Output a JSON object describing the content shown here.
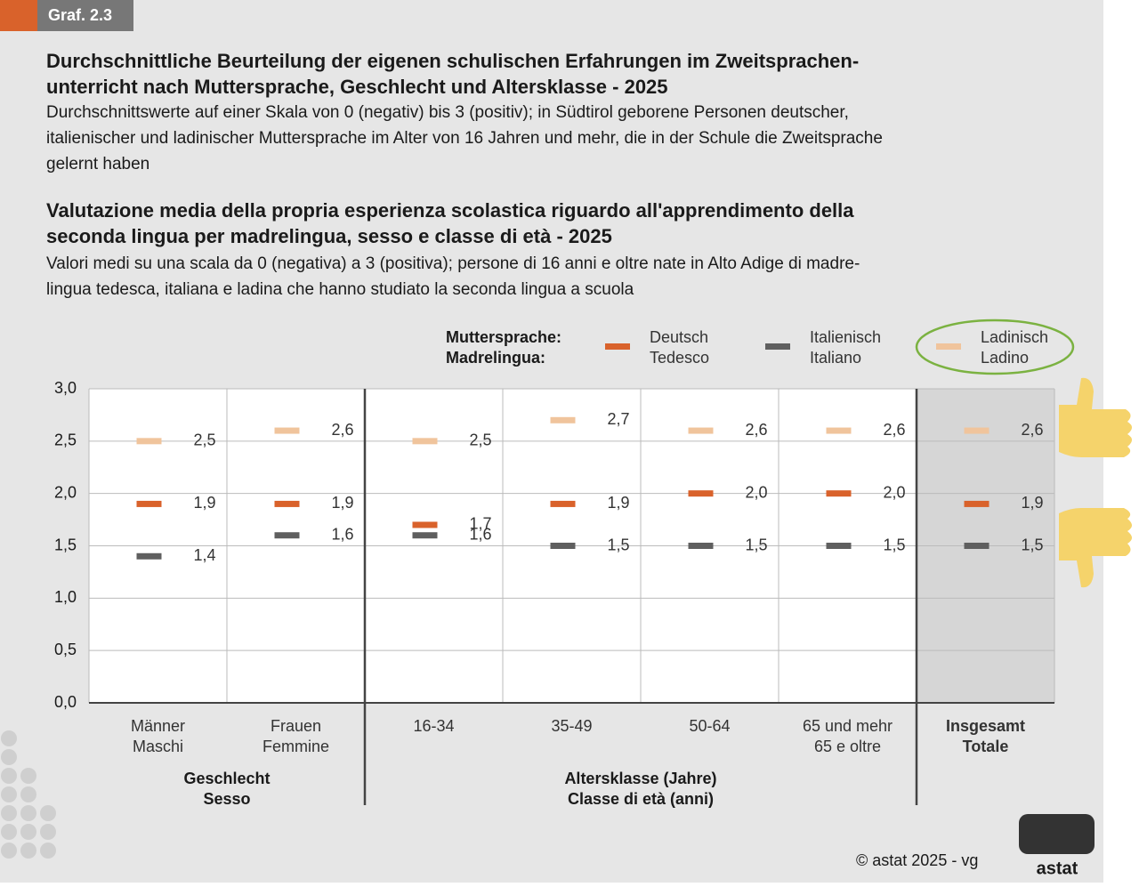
{
  "badge": "Graf. 2.3",
  "chart_data": {
    "type": "dash",
    "title_de": [
      "Durchschnittliche Beurteilung der eigenen schulischen Erfahrungen im Zweitsprachen-",
      "unterricht nach Muttersprache, Geschlecht und Altersklasse - 2025"
    ],
    "subtitle_de": [
      "Durchschnittswerte auf einer Skala von 0 (negativ) bis 3 (positiv); in Südtirol geborene Personen deutscher,",
      "italienischer und ladinischer Muttersprache im Alter von 16 Jahren und mehr, die in der Schule die Zweitsprache",
      "gelernt haben"
    ],
    "title_it": [
      "Valutazione media della propria esperienza scolastica riguardo all'apprendimento della",
      "seconda lingua per madrelingua, sesso e classe di età - 2025"
    ],
    "subtitle_it": [
      "Valori medi su una scala da 0 (negativa) a 3 (positiva); persone di 16 anni e oltre nate in Alto Adige di madre-",
      "lingua tedesca, italiana e ladina che hanno studiato la seconda lingua a scuola"
    ],
    "legend_title": [
      "Muttersprache:",
      "Madrelingua:"
    ],
    "categories": [
      [
        "Männer",
        "Maschi"
      ],
      [
        "Frauen",
        "Femmine"
      ],
      [
        "16-34"
      ],
      [
        "35-49"
      ],
      [
        "50-64"
      ],
      [
        "65 und mehr",
        "65 e oltre"
      ],
      [
        "Insgesamt",
        "Totale"
      ]
    ],
    "groups": [
      [
        "Geschlecht",
        "Sesso"
      ],
      [
        "Altersklasse (Jahre)",
        "Classe di età (anni)"
      ]
    ],
    "series": [
      {
        "name": [
          "Deutsch",
          "Tedesco"
        ],
        "color": "#d9622b",
        "values": [
          1.9,
          1.9,
          1.7,
          1.9,
          2.0,
          2.0,
          1.9
        ],
        "value_labels": [
          "1,9",
          "1,9",
          "1,7",
          "1,9",
          "2,0",
          "2,0",
          "1,9"
        ]
      },
      {
        "name": [
          "Italienisch",
          "Italiano"
        ],
        "color": "#5f5f5f",
        "values": [
          1.4,
          1.6,
          1.6,
          1.5,
          1.5,
          1.5,
          1.5
        ],
        "value_labels": [
          "1,4",
          "1,6",
          "1,6",
          "1,5",
          "1,5",
          "1,5",
          "1,5"
        ]
      },
      {
        "name": [
          "Ladinisch",
          "Ladino"
        ],
        "color": "#f0c49c",
        "values": [
          2.5,
          2.6,
          2.5,
          2.7,
          2.6,
          2.6,
          2.6
        ],
        "value_labels": [
          "2,5",
          "2,6",
          "2,5",
          "2,7",
          "2,6",
          "2,6",
          "2,6"
        ]
      }
    ],
    "ylim": [
      0,
      3
    ],
    "yticks": [
      {
        "value": 0,
        "label": "0,0"
      },
      {
        "value": 0.5,
        "label": "0,5"
      },
      {
        "value": 1,
        "label": "1,0"
      },
      {
        "value": 1.5,
        "label": "1,5"
      },
      {
        "value": 2,
        "label": "2,0"
      },
      {
        "value": 2.5,
        "label": "2,5"
      },
      {
        "value": 3,
        "label": "3,0"
      }
    ],
    "grid": true
  },
  "footer": "© astat 2025 - vg",
  "logo": "astat"
}
